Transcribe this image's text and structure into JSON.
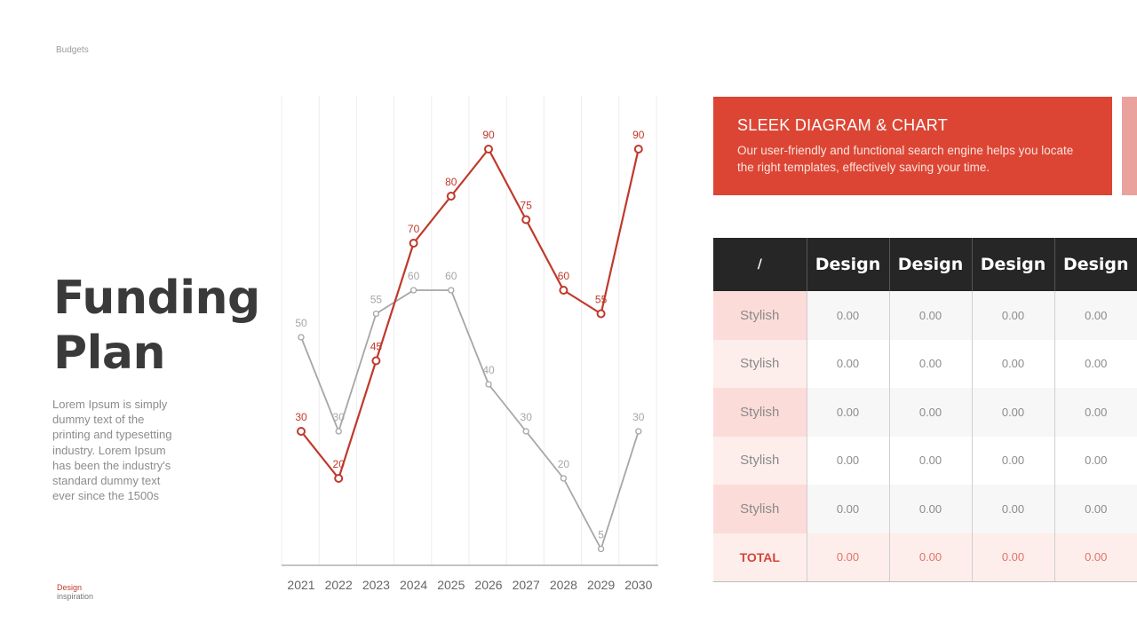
{
  "breadcrumb": "Budgets",
  "title": {
    "line1": "Funding",
    "line2": "Plan"
  },
  "description": "Lorem Ipsum is simply dummy text of the printing and typesetting industry. Lorem Ipsum has been the industry's standard dummy text ever since the 1500s",
  "footer": {
    "line1": "Design",
    "line2": "inspiration"
  },
  "banner": {
    "title": "SLEEK DIAGRAM & CHART",
    "text": "Our user-friendly and functional search engine helps you locate the right templates, effectively saving your time."
  },
  "table": {
    "headers": [
      "/",
      "Design",
      "Design",
      "Design",
      "Design"
    ],
    "rows": [
      [
        "Stylish",
        "0.00",
        "0.00",
        "0.00",
        "0.00"
      ],
      [
        "Stylish",
        "0.00",
        "0.00",
        "0.00",
        "0.00"
      ],
      [
        "Stylish",
        "0.00",
        "0.00",
        "0.00",
        "0.00"
      ],
      [
        "Stylish",
        "0.00",
        "0.00",
        "0.00",
        "0.00"
      ],
      [
        "Stylish",
        "0.00",
        "0.00",
        "0.00",
        "0.00"
      ]
    ],
    "total": [
      "TOTAL",
      "0.00",
      "0.00",
      "0.00",
      "0.00"
    ]
  },
  "colors": {
    "accent": "#dc4534",
    "series_red": "#c0392b",
    "series_gray": "#a6a6a6",
    "header_dark": "#262626"
  },
  "chart_data": {
    "type": "line",
    "x": [
      "2021",
      "2022",
      "2023",
      "2024",
      "2025",
      "2026",
      "2027",
      "2028",
      "2029",
      "2030"
    ],
    "series": [
      {
        "color": "#c0392b",
        "values": [
          30,
          20,
          45,
          70,
          80,
          90,
          75,
          60,
          55,
          90
        ]
      },
      {
        "color": "#a6a6a6",
        "values": [
          50,
          30,
          55,
          60,
          60,
          40,
          30,
          20,
          5,
          30
        ]
      }
    ],
    "ylim": [
      0,
      100
    ],
    "grid": "vertical",
    "legend": "none"
  }
}
